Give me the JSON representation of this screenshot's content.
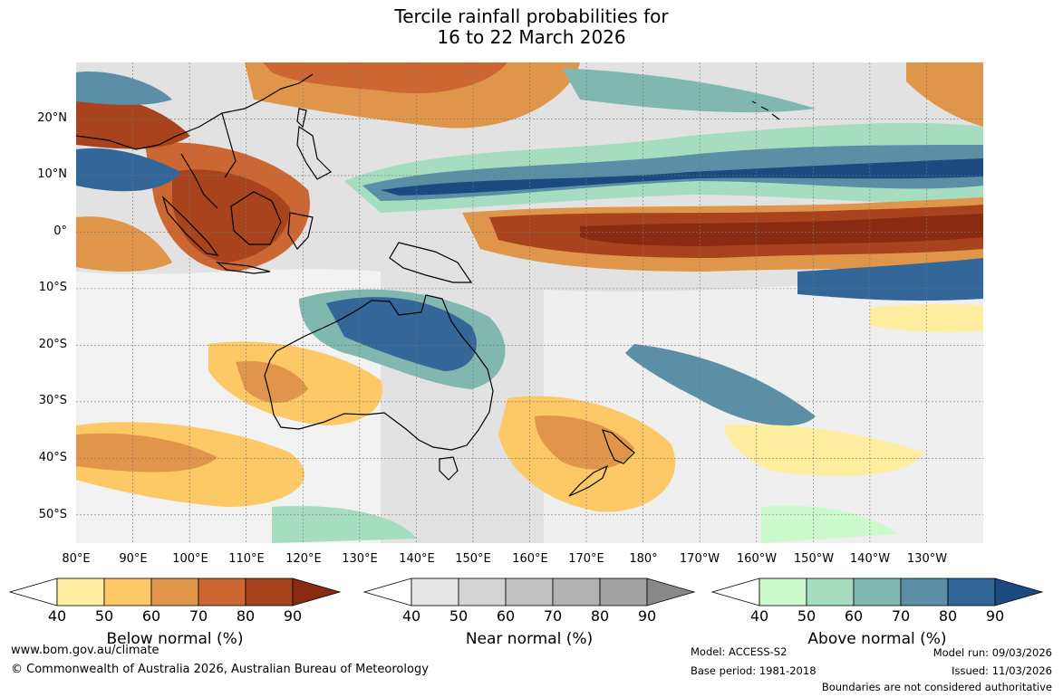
{
  "title": {
    "line1": "Tercile rainfall probabilities for",
    "line2": "16 to 22 March 2026"
  },
  "map": {
    "lat_labels": [
      "20°N",
      "10°N",
      "0°",
      "10°S",
      "20°S",
      "30°S",
      "40°S",
      "50°S"
    ],
    "lon_labels": [
      "80°E",
      "90°E",
      "100°E",
      "110°E",
      "120°E",
      "130°E",
      "140°E",
      "150°E",
      "160°E",
      "170°E",
      "180°",
      "170°W",
      "160°W",
      "150°W",
      "140°W",
      "130°W"
    ],
    "extent": {
      "lon_min": 80,
      "lon_max": 240,
      "lat_min": -55,
      "lat_max": 30
    }
  },
  "colorbars": [
    {
      "label": "Below normal (%)",
      "ticks": [
        "40",
        "50",
        "60",
        "70",
        "80",
        "90"
      ],
      "colors": [
        "#ffeda0",
        "#fdc966",
        "#e0964a",
        "#cc6633",
        "#a8431e",
        "#8a2a10"
      ]
    },
    {
      "label": "Near normal (%)",
      "ticks": [
        "40",
        "50",
        "60",
        "70",
        "80",
        "90"
      ],
      "colors": [
        "#e6e6e6",
        "#d4d4d4",
        "#c2c2c2",
        "#b2b2b2",
        "#a2a2a2",
        "#888888"
      ]
    },
    {
      "label": "Above normal (%)",
      "ticks": [
        "40",
        "50",
        "60",
        "70",
        "80",
        "90"
      ],
      "colors": [
        "#ccfacc",
        "#a6dcc0",
        "#80b8b0",
        "#5a8fa5",
        "#336699",
        "#1a4a80"
      ]
    }
  ],
  "footer": {
    "website": "www.bom.gov.au/climate",
    "copyright": "© Commonwealth of Australia 2026, Australian Bureau of Meteorology",
    "model": "Model: ACCESS-S2",
    "base_period": "Base period: 1981-2018",
    "model_run": "Model run: 09/03/2026",
    "issued": "Issued: 11/03/2026",
    "disclaimer": "Boundaries are not considered authoritative"
  }
}
